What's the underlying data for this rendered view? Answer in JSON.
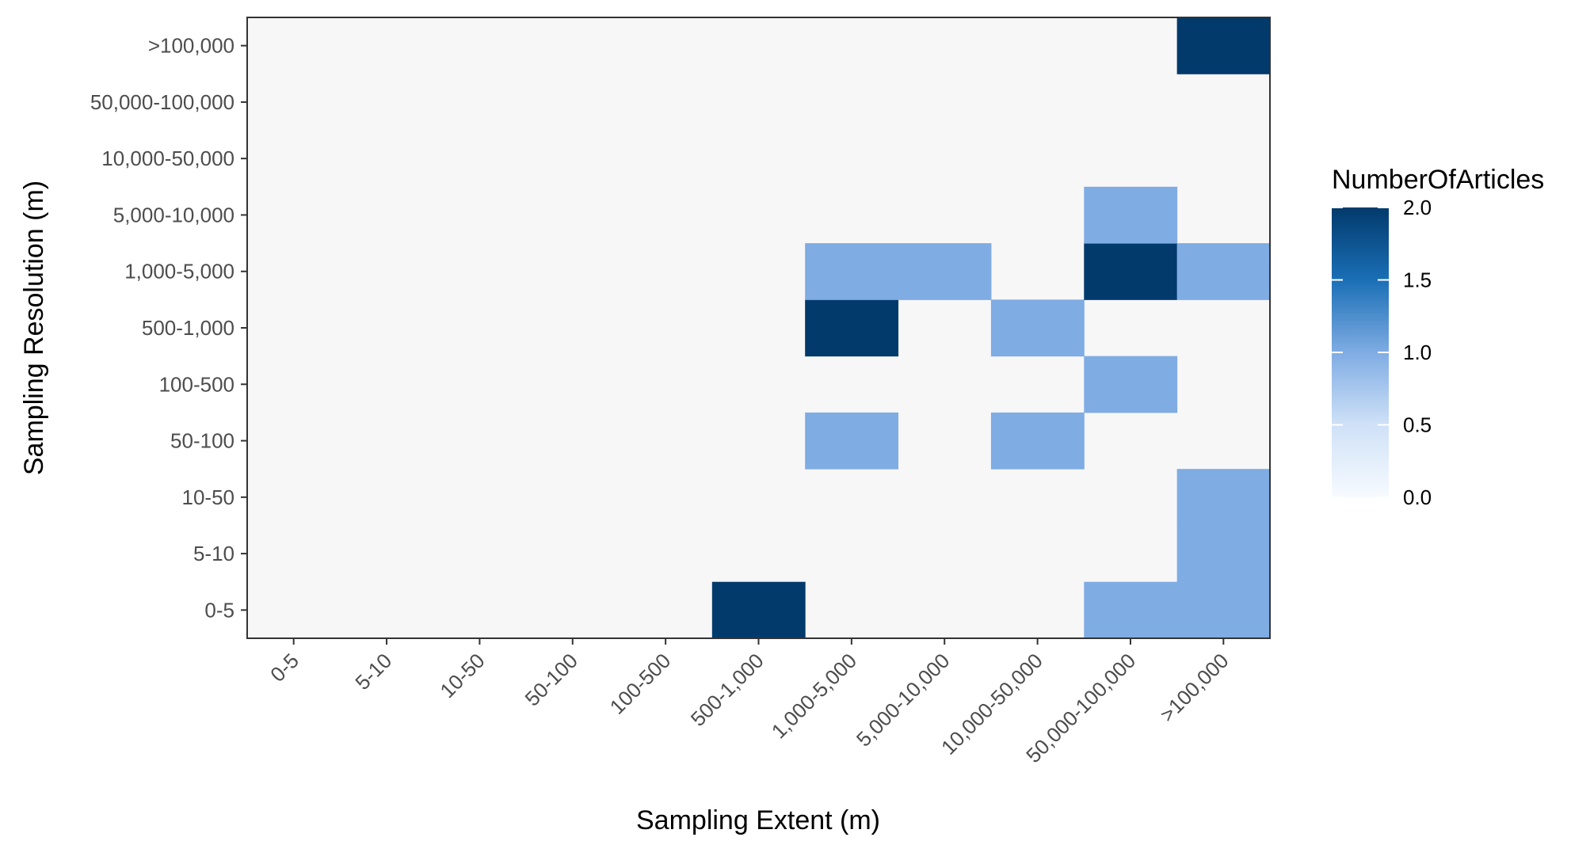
{
  "chart_data": {
    "type": "heatmap",
    "xlabel": "Sampling Extent (m)",
    "ylabel": "Sampling Resolution (m)",
    "x_categories": [
      "0-5",
      "5-10",
      "10-50",
      "50-100",
      "100-500",
      "500-1,000",
      "1,000-5,000",
      "5,000-10,000",
      "10,000-50,000",
      "50,000-100,000",
      ">100,000"
    ],
    "y_categories": [
      "0-5",
      "5-10",
      "10-50",
      "50-100",
      "100-500",
      "500-1,000",
      "1,000-5,000",
      "5,000-10,000",
      "10,000-50,000",
      "50,000-100,000",
      ">100,000"
    ],
    "cells": [
      {
        "x": "500-1,000",
        "y": "0-5",
        "value": 2
      },
      {
        "x": "50,000-100,000",
        "y": "0-5",
        "value": 1
      },
      {
        "x": ">100,000",
        "y": "0-5",
        "value": 1
      },
      {
        "x": ">100,000",
        "y": "5-10",
        "value": 1
      },
      {
        "x": ">100,000",
        "y": "10-50",
        "value": 1
      },
      {
        "x": "1,000-5,000",
        "y": "50-100",
        "value": 1
      },
      {
        "x": "10,000-50,000",
        "y": "50-100",
        "value": 1
      },
      {
        "x": "50,000-100,000",
        "y": "100-500",
        "value": 1
      },
      {
        "x": "1,000-5,000",
        "y": "500-1,000",
        "value": 2
      },
      {
        "x": "10,000-50,000",
        "y": "500-1,000",
        "value": 1
      },
      {
        "x": "1,000-5,000",
        "y": "1,000-5,000",
        "value": 1
      },
      {
        "x": "5,000-10,000",
        "y": "1,000-5,000",
        "value": 1
      },
      {
        "x": "50,000-100,000",
        "y": "1,000-5,000",
        "value": 2
      },
      {
        "x": ">100,000",
        "y": "1,000-5,000",
        "value": 1
      },
      {
        "x": "50,000-100,000",
        "y": "5,000-10,000",
        "value": 1
      },
      {
        "x": ">100,000",
        "y": ">100,000",
        "value": 2
      }
    ],
    "legend": {
      "title": "NumberOfArticles",
      "range": [
        0,
        2
      ],
      "ticks": [
        "0.0",
        "0.5",
        "1.0",
        "1.5",
        "2.0"
      ],
      "tick_values": [
        0,
        0.5,
        1,
        1.5,
        2
      ],
      "placement": "right"
    },
    "colors": {
      "zero": "#f7f7f7",
      "scale": [
        "#f7fbff",
        "#cfe1f7",
        "#7facE3",
        "#1a6fb6",
        "#023a6c"
      ],
      "panel_border": "#333333",
      "tick": "#333333"
    },
    "grid": false
  }
}
